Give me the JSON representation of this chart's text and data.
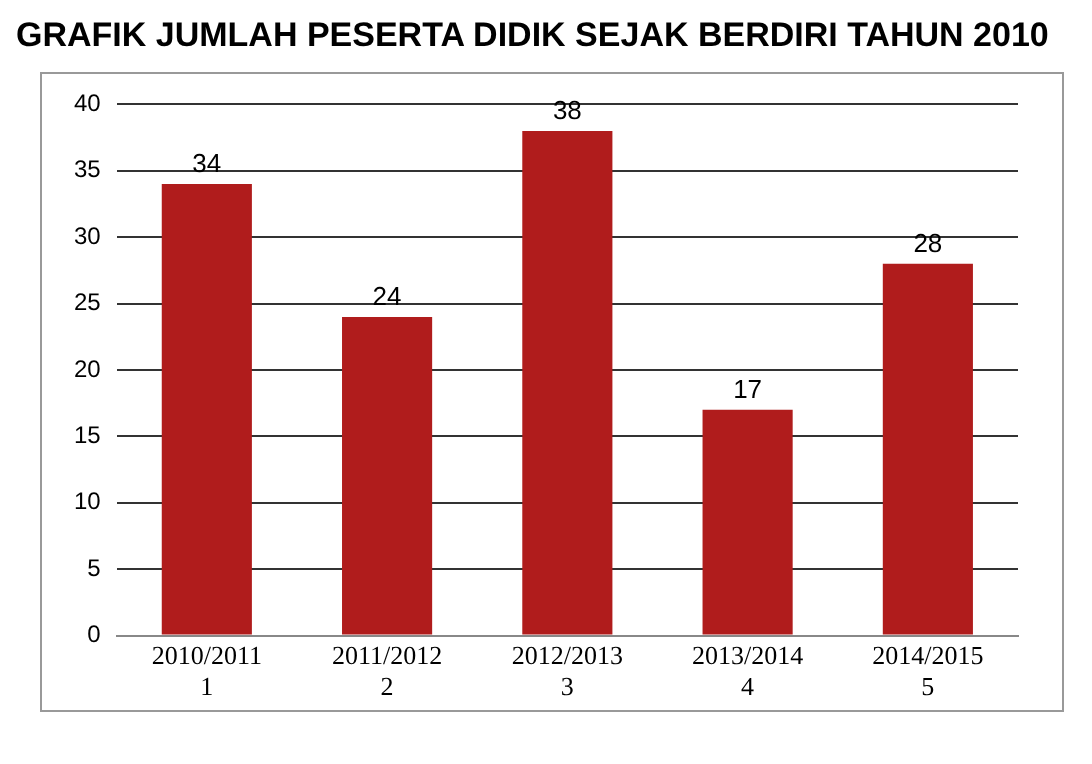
{
  "chart_data": {
    "type": "bar",
    "title": "GRAFIK JUMLAH PESERTA DIDIK SEJAK BERDIRI TAHUN 2010",
    "categories": [
      "2010/2011\n1",
      "2011/2012\n2",
      "2012/2013\n3",
      "2013/2014\n4",
      "2014/2015\n5"
    ],
    "values": [
      34,
      24,
      38,
      17,
      28
    ],
    "color": "#b01c1c",
    "ylim": [
      0,
      40
    ],
    "yticks": [
      0,
      5,
      10,
      15,
      20,
      25,
      30,
      35,
      40
    ],
    "grid": "y",
    "data_labels": true,
    "legend": false
  }
}
